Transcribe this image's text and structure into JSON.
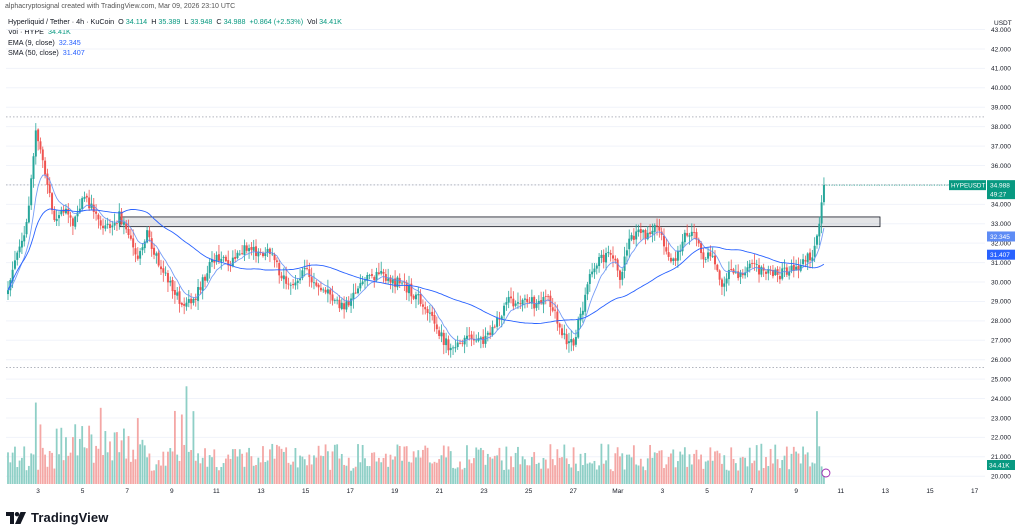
{
  "header": {
    "caption": "alphacryptosignal created with TradingView.com, Mar 09, 2026 23:10 UTC",
    "symbol": "Hyperliquid / Tether · 4h · KuCoin",
    "ohlc": {
      "o_label": "O",
      "o": "34.114",
      "h_label": "H",
      "h": "35.389",
      "l_label": "L",
      "l": "33.948",
      "c_label": "C",
      "c": "34.988",
      "chg": "+0.864 (+2.53%)",
      "vol_label": "Vol",
      "vol": "34.41K"
    },
    "volume_row": {
      "label": "Vol · HYPE",
      "value": "34.41K"
    },
    "ema_row": {
      "label": "EMA (9, close)",
      "value": "32.345"
    },
    "sma_row": {
      "label": "SMA (50, close)",
      "value": "31.407"
    }
  },
  "brand": {
    "name": "TradingView"
  },
  "colors": {
    "up": "#26a69a",
    "down": "#ef5350",
    "vol_up": "#8ecfc6",
    "vol_down": "#f4a7a5",
    "ema": "#5e8cf5",
    "sma": "#2962ff",
    "last": "#089981"
  },
  "chart_data": {
    "type": "candlestick",
    "timeframe": "4h",
    "currency": "USDT",
    "y_ticks": [
      "20.000",
      "21.000",
      "22.000",
      "23.000",
      "24.000",
      "25.000",
      "26.000",
      "27.000",
      "28.000",
      "29.000",
      "30.000",
      "31.000",
      "32.000",
      "33.000",
      "34.000",
      "35.000",
      "36.000",
      "37.000",
      "38.000",
      "39.000",
      "40.000",
      "41.000",
      "42.000",
      "43.000"
    ],
    "ylim": [
      19.6,
      43.8
    ],
    "x_ticks": [
      "3",
      "5",
      "7",
      "9",
      "11",
      "13",
      "15",
      "17",
      "19",
      "21",
      "23",
      "25",
      "27",
      "Mar",
      "3",
      "5",
      "7",
      "9",
      "11",
      "13",
      "15",
      "17"
    ],
    "price_anchors": [
      [
        0,
        29.8
      ],
      [
        4,
        31.5
      ],
      [
        8,
        33.0
      ],
      [
        12,
        37.8
      ],
      [
        16,
        35.5
      ],
      [
        20,
        33.2
      ],
      [
        24,
        33.8
      ],
      [
        28,
        32.9
      ],
      [
        32,
        34.3
      ],
      [
        36,
        33.9
      ],
      [
        40,
        33.0
      ],
      [
        44,
        32.7
      ],
      [
        48,
        33.4
      ],
      [
        52,
        32.6
      ],
      [
        56,
        31.2
      ],
      [
        60,
        32.6
      ],
      [
        64,
        31.3
      ],
      [
        68,
        30.3
      ],
      [
        72,
        29.5
      ],
      [
        76,
        28.7
      ],
      [
        80,
        29.0
      ],
      [
        84,
        30.0
      ],
      [
        88,
        31.2
      ],
      [
        92,
        31.4
      ],
      [
        96,
        30.8
      ],
      [
        100,
        31.6
      ],
      [
        104,
        31.8
      ],
      [
        108,
        31.3
      ],
      [
        112,
        31.7
      ],
      [
        116,
        30.8
      ],
      [
        120,
        30.0
      ],
      [
        124,
        30.1
      ],
      [
        128,
        30.8
      ],
      [
        132,
        30.0
      ],
      [
        136,
        29.7
      ],
      [
        140,
        29.2
      ],
      [
        144,
        28.8
      ],
      [
        148,
        29.0
      ],
      [
        152,
        29.9
      ],
      [
        156,
        30.2
      ],
      [
        160,
        30.5
      ],
      [
        164,
        30.1
      ],
      [
        168,
        30.0
      ],
      [
        172,
        29.7
      ],
      [
        176,
        29.3
      ],
      [
        180,
        28.8
      ],
      [
        184,
        27.9
      ],
      [
        188,
        27.0
      ],
      [
        192,
        26.5
      ],
      [
        196,
        26.8
      ],
      [
        200,
        27.3
      ],
      [
        204,
        27.0
      ],
      [
        208,
        27.3
      ],
      [
        212,
        28.1
      ],
      [
        216,
        29.0
      ],
      [
        220,
        28.7
      ],
      [
        224,
        29.1
      ],
      [
        228,
        28.8
      ],
      [
        232,
        29.4
      ],
      [
        236,
        28.3
      ],
      [
        240,
        27.1
      ],
      [
        244,
        27.0
      ],
      [
        248,
        28.6
      ],
      [
        252,
        30.7
      ],
      [
        256,
        31.2
      ],
      [
        260,
        31.5
      ],
      [
        264,
        30.3
      ],
      [
        268,
        32.0
      ],
      [
        272,
        32.7
      ],
      [
        276,
        32.4
      ],
      [
        280,
        33.1
      ],
      [
        284,
        31.5
      ],
      [
        288,
        31.1
      ],
      [
        292,
        32.4
      ],
      [
        296,
        32.5
      ],
      [
        300,
        31.4
      ],
      [
        304,
        31.1
      ],
      [
        308,
        30.0
      ],
      [
        312,
        30.7
      ],
      [
        316,
        30.3
      ],
      [
        320,
        31.1
      ],
      [
        324,
        30.5
      ],
      [
        328,
        30.6
      ],
      [
        332,
        30.3
      ],
      [
        336,
        30.6
      ],
      [
        340,
        30.6
      ],
      [
        344,
        31.1
      ],
      [
        348,
        31.6
      ],
      [
        350,
        33.0
      ],
      [
        351,
        34.1
      ],
      [
        352,
        34.988
      ]
    ],
    "volume": {
      "last": "34.41K",
      "max_units": 14
    },
    "ema": {
      "period": 9,
      "last": "32.345"
    },
    "sma": {
      "period": 50,
      "last": "31.407"
    },
    "last_price": {
      "symbol": "HYPEUSDT",
      "price": "34.988",
      "countdown": "49:27"
    },
    "resistance_zone": [
      32.85,
      33.35
    ],
    "dotted_levels": [
      38.5,
      35.0,
      25.6
    ]
  }
}
